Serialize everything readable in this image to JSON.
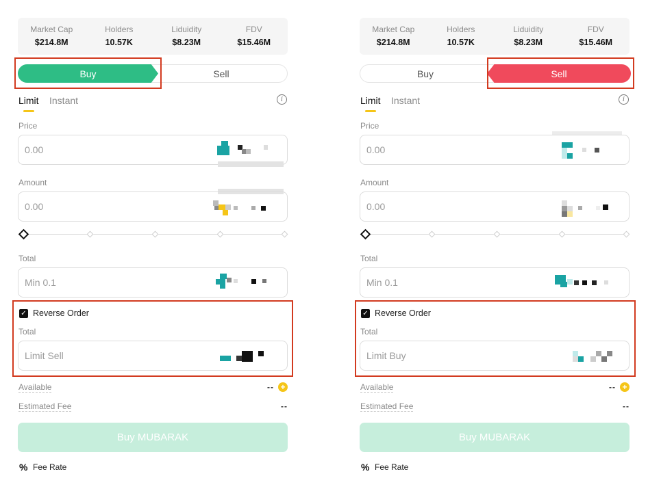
{
  "stats": [
    {
      "label": "Market Cap",
      "value": "$214.8M"
    },
    {
      "label": "Holders",
      "value": "10.57K"
    },
    {
      "label": "Liduidity",
      "value": "$8.23M"
    },
    {
      "label": "FDV",
      "value": "$15.46M"
    }
  ],
  "toggle": {
    "buy": "Buy",
    "sell": "Sell"
  },
  "tabs": {
    "limit": "Limit",
    "instant": "Instant"
  },
  "info_icon": "i",
  "price": {
    "label": "Price",
    "placeholder": "0.00"
  },
  "amount": {
    "label": "Amount",
    "placeholder": "0.00"
  },
  "total": {
    "label": "Total",
    "placeholder": "Min 0.1"
  },
  "reverse": {
    "label": "Reverse Order",
    "total_label": "Total"
  },
  "panels": [
    {
      "side": "buy",
      "reverse_placeholder": "Limit Sell"
    },
    {
      "side": "sell",
      "reverse_placeholder": "Limit Buy"
    }
  ],
  "available": {
    "label": "Available",
    "value": "--"
  },
  "estimated_fee": {
    "label": "Estimated Fee",
    "value": "--"
  },
  "cta_label": "Buy MUBARAK",
  "fee_rate": {
    "icon": "%",
    "label": "Fee Rate"
  },
  "colors": {
    "buy": "#2ebd85",
    "sell": "#f04a5c",
    "accent": "#f5c518",
    "highlight": "#d23a1f",
    "cta_disabled": "#c6eedc"
  }
}
